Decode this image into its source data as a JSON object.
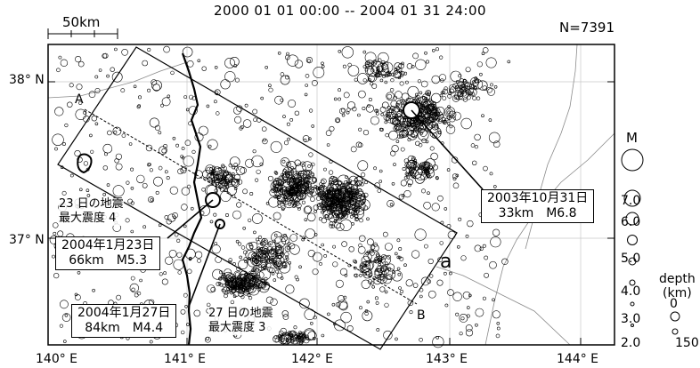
{
  "title": "2000 01 01 00:00 -- 2004 01 31 24:00",
  "count": "N=7391",
  "scale_label": "50km",
  "lat_labels": [
    "38° N",
    "37° N"
  ],
  "lon_labels": [
    "140° E",
    "141° E",
    "142° E",
    "143° E",
    "144° E"
  ],
  "profile_labels": {
    "a": "A",
    "b": "B",
    "region": "a"
  },
  "callouts": {
    "eq_2003": {
      "line1": "2003年10月31日",
      "line2": "33km　M6.8"
    },
    "eq_2004_0123": {
      "line1": "2004年1月23日",
      "line2": "66km　M5.3"
    },
    "eq_2004_0127": {
      "line1": "2004年1月27日",
      "line2": "84km　M4.4"
    }
  },
  "notes": {
    "note_23": {
      "line1": "23 日の地震",
      "line2": "最大震度 4"
    },
    "note_27": {
      "line1": "27 日の地震",
      "line2": "最大震度 3"
    }
  },
  "magnitude_legend": {
    "title": "M",
    "values": [
      "7.0",
      "6.0",
      "5.0",
      "4.0",
      "3.0",
      "2.0"
    ]
  },
  "depth_legend": {
    "title_line1": "depth",
    "title_line2": "(km)",
    "values": [
      "0",
      "150"
    ]
  },
  "colors": {
    "markers": "#000000",
    "roads": "#888888",
    "coast": "#000000"
  }
}
